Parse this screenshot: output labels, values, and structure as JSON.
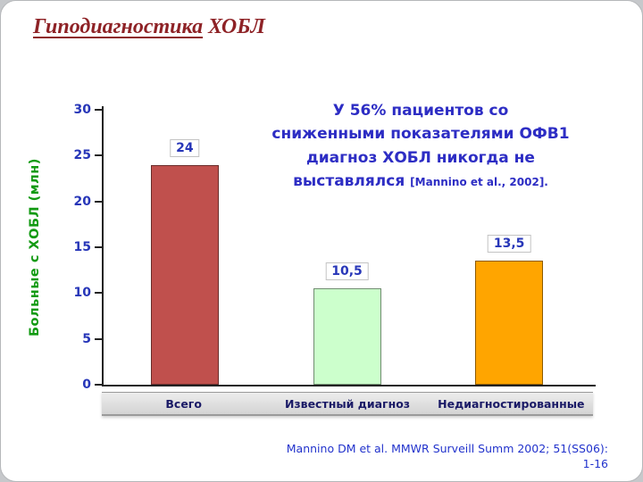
{
  "slide": {
    "title_underlined": "Гиподиагностика",
    "title_rest": " ХОБЛ"
  },
  "annotation": {
    "lines": {
      "0": "У 56% пациентов со",
      "1": "сниженными показателями ОФВ1",
      "2": "диагноз ХОБЛ никогда не",
      "3": "выставлялся"
    },
    "citation_inline": "[Mannino et al., 2002]."
  },
  "footer": {
    "citation_line1": "Mannino DM et al. MMWR Surveill Summ 2002; 51(SS06):",
    "citation_line2": "1-16"
  },
  "chart_data": {
    "type": "bar",
    "title": "",
    "xlabel": "",
    "ylabel": "Больные с ХОБЛ (млн)",
    "categories": [
      "Всего",
      "Известный диагноз",
      "Недиагностированные"
    ],
    "values": [
      24,
      10.5,
      13.5
    ],
    "value_labels": [
      "24",
      "10,5",
      "13,5"
    ],
    "bar_colors": [
      "#c0504d",
      "#ccffcc",
      "#ffa500"
    ],
    "ylim": [
      0,
      30
    ],
    "yticks": [
      0,
      5,
      10,
      15,
      20,
      25,
      30
    ],
    "grid": false,
    "legend": "none"
  },
  "colors": {
    "title": "#8e2226",
    "axis_text": "#2736b8",
    "category_text": "#1a1a66",
    "ylabel_text": "#129a12",
    "annotation_text": "#2d2dc4",
    "footer_text": "#2233cc"
  }
}
